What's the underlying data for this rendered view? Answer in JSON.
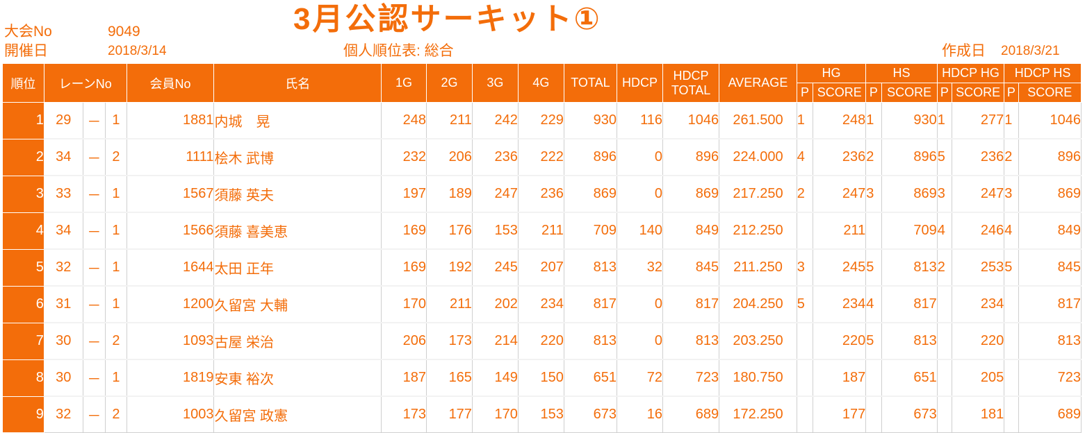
{
  "header": {
    "tournament_no_label": "大会No",
    "tournament_no": "9049",
    "date_label": "開催日",
    "date": "2018/3/14",
    "title": "3月公認サーキット①",
    "subtitle": "個人順位表: 総合",
    "created_label": "作成日",
    "created_date": "2018/3/21"
  },
  "columns": {
    "rank": "順位",
    "lane": "レーンNo",
    "member": "会員No",
    "name": "氏名",
    "g1": "1G",
    "g2": "2G",
    "g3": "3G",
    "g4": "4G",
    "total": "TOTAL",
    "hdcp": "HDCP",
    "hdcp_total_1": "HDCP",
    "hdcp_total_2": "TOTAL",
    "average": "AVERAGE",
    "hg": "HG",
    "hs": "HS",
    "hdcp_hg": "HDCP HG",
    "hdcp_hs": "HDCP HS",
    "p": "P",
    "score": "SCORE"
  },
  "rows": [
    {
      "rank": "1",
      "lane": "29",
      "dash": "－",
      "box": "1",
      "member": "1881",
      "name": "内城　晃",
      "g1": "248",
      "g2": "211",
      "g3": "242",
      "g4": "229",
      "total": "930",
      "hdcp": "116",
      "hdcp_total": "1046",
      "average": "261.500",
      "hg_p": "1",
      "hg_score": "248",
      "hs_p": "1",
      "hs_score": "930",
      "hhg_p": "1",
      "hhg_score": "277",
      "hhs_p": "1",
      "hhs_score": "1046"
    },
    {
      "rank": "2",
      "lane": "34",
      "dash": "－",
      "box": "2",
      "member": "1111",
      "name": "桧木 武博",
      "g1": "232",
      "g2": "206",
      "g3": "236",
      "g4": "222",
      "total": "896",
      "hdcp": "0",
      "hdcp_total": "896",
      "average": "224.000",
      "hg_p": "4",
      "hg_score": "236",
      "hs_p": "2",
      "hs_score": "896",
      "hhg_p": "5",
      "hhg_score": "236",
      "hhs_p": "2",
      "hhs_score": "896"
    },
    {
      "rank": "3",
      "lane": "33",
      "dash": "－",
      "box": "1",
      "member": "1567",
      "name": "須藤 英夫",
      "g1": "197",
      "g2": "189",
      "g3": "247",
      "g4": "236",
      "total": "869",
      "hdcp": "0",
      "hdcp_total": "869",
      "average": "217.250",
      "hg_p": "2",
      "hg_score": "247",
      "hs_p": "3",
      "hs_score": "869",
      "hhg_p": "3",
      "hhg_score": "247",
      "hhs_p": "3",
      "hhs_score": "869"
    },
    {
      "rank": "4",
      "lane": "34",
      "dash": "－",
      "box": "1",
      "member": "1566",
      "name": "須藤 喜美恵",
      "g1": "169",
      "g2": "176",
      "g3": "153",
      "g4": "211",
      "total": "709",
      "hdcp": "140",
      "hdcp_total": "849",
      "average": "212.250",
      "hg_p": "",
      "hg_score": "211",
      "hs_p": "",
      "hs_score": "709",
      "hhg_p": "4",
      "hhg_score": "246",
      "hhs_p": "4",
      "hhs_score": "849"
    },
    {
      "rank": "5",
      "lane": "32",
      "dash": "－",
      "box": "1",
      "member": "1644",
      "name": "太田 正年",
      "g1": "169",
      "g2": "192",
      "g3": "245",
      "g4": "207",
      "total": "813",
      "hdcp": "32",
      "hdcp_total": "845",
      "average": "211.250",
      "hg_p": "3",
      "hg_score": "245",
      "hs_p": "5",
      "hs_score": "813",
      "hhg_p": "2",
      "hhg_score": "253",
      "hhs_p": "5",
      "hhs_score": "845"
    },
    {
      "rank": "6",
      "lane": "31",
      "dash": "－",
      "box": "1",
      "member": "1200",
      "name": "久留宮 大輔",
      "g1": "170",
      "g2": "211",
      "g3": "202",
      "g4": "234",
      "total": "817",
      "hdcp": "0",
      "hdcp_total": "817",
      "average": "204.250",
      "hg_p": "5",
      "hg_score": "234",
      "hs_p": "4",
      "hs_score": "817",
      "hhg_p": "",
      "hhg_score": "234",
      "hhs_p": "",
      "hhs_score": "817"
    },
    {
      "rank": "7",
      "lane": "30",
      "dash": "－",
      "box": "2",
      "member": "1093",
      "name": "古屋 栄治",
      "g1": "206",
      "g2": "173",
      "g3": "214",
      "g4": "220",
      "total": "813",
      "hdcp": "0",
      "hdcp_total": "813",
      "average": "203.250",
      "hg_p": "",
      "hg_score": "220",
      "hs_p": "5",
      "hs_score": "813",
      "hhg_p": "",
      "hhg_score": "220",
      "hhs_p": "",
      "hhs_score": "813"
    },
    {
      "rank": "8",
      "lane": "30",
      "dash": "－",
      "box": "1",
      "member": "1819",
      "name": "安東 裕次",
      "g1": "187",
      "g2": "165",
      "g3": "149",
      "g4": "150",
      "total": "651",
      "hdcp": "72",
      "hdcp_total": "723",
      "average": "180.750",
      "hg_p": "",
      "hg_score": "187",
      "hs_p": "",
      "hs_score": "651",
      "hhg_p": "",
      "hhg_score": "205",
      "hhs_p": "",
      "hhs_score": "723"
    },
    {
      "rank": "9",
      "lane": "32",
      "dash": "－",
      "box": "2",
      "member": "1003",
      "name": "久留宮 政憲",
      "g1": "173",
      "g2": "177",
      "g3": "170",
      "g4": "153",
      "total": "673",
      "hdcp": "16",
      "hdcp_total": "689",
      "average": "172.250",
      "hg_p": "",
      "hg_score": "177",
      "hs_p": "",
      "hs_score": "673",
      "hhg_p": "",
      "hhg_score": "181",
      "hhs_p": "",
      "hhs_score": "689"
    }
  ]
}
